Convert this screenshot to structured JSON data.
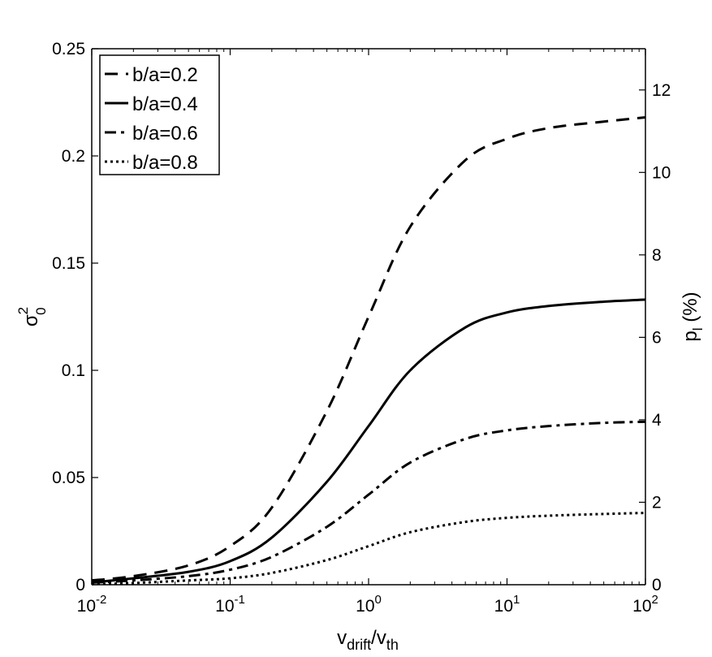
{
  "chart_data": {
    "type": "line",
    "xlabel": {
      "main": "v",
      "sub1": "drift",
      "mid": "/v",
      "sub2": "th"
    },
    "ylabel": {
      "main": "σ",
      "sup": "2",
      "sub": "0"
    },
    "y2label": {
      "main": "p",
      "sub": "l",
      "rest": " (%)"
    },
    "xscale": "log",
    "xlim": [
      0.01,
      100
    ],
    "ylim": [
      0,
      0.25
    ],
    "y2lim": [
      0,
      13
    ],
    "grid": false,
    "legend_position": "top-left",
    "xticks": [
      {
        "value": 0.01,
        "base": "10",
        "exp": "-2"
      },
      {
        "value": 0.1,
        "base": "10",
        "exp": "-1"
      },
      {
        "value": 1,
        "base": "10",
        "exp": "0"
      },
      {
        "value": 10,
        "base": "10",
        "exp": "1"
      },
      {
        "value": 100,
        "base": "10",
        "exp": "2"
      }
    ],
    "yticks": [
      {
        "value": 0,
        "label": "0"
      },
      {
        "value": 0.05,
        "label": "0.05"
      },
      {
        "value": 0.1,
        "label": "0.1"
      },
      {
        "value": 0.15,
        "label": "0.15"
      },
      {
        "value": 0.2,
        "label": "0.2"
      },
      {
        "value": 0.25,
        "label": "0.25"
      }
    ],
    "y2ticks": [
      {
        "value": 0,
        "label": "0"
      },
      {
        "value": 2,
        "label": "2"
      },
      {
        "value": 4,
        "label": "4"
      },
      {
        "value": 6,
        "label": "6"
      },
      {
        "value": 8,
        "label": "8"
      },
      {
        "value": 10,
        "label": "10"
      },
      {
        "value": 12,
        "label": "12"
      }
    ],
    "x": [
      0.01,
      0.02,
      0.05,
      0.1,
      0.2,
      0.5,
      1,
      2,
      5,
      10,
      20,
      50,
      100
    ],
    "series": [
      {
        "name": "b/a=0.2",
        "style": "dashed",
        "values": [
          0.002,
          0.004,
          0.009,
          0.018,
          0.036,
          0.081,
          0.125,
          0.167,
          0.198,
          0.208,
          0.213,
          0.216,
          0.218
        ]
      },
      {
        "name": "b/a=0.4",
        "style": "solid",
        "values": [
          0.001,
          0.003,
          0.006,
          0.011,
          0.022,
          0.048,
          0.074,
          0.1,
          0.12,
          0.127,
          0.13,
          0.132,
          0.133
        ]
      },
      {
        "name": "b/a=0.6",
        "style": "dashdot",
        "values": [
          0.001,
          0.002,
          0.004,
          0.007,
          0.013,
          0.027,
          0.042,
          0.057,
          0.068,
          0.072,
          0.074,
          0.0755,
          0.076
        ]
      },
      {
        "name": "b/a=0.8",
        "style": "dotted",
        "values": [
          0.0003,
          0.0008,
          0.002,
          0.003,
          0.0055,
          0.0115,
          0.018,
          0.0245,
          0.0293,
          0.0312,
          0.0322,
          0.033,
          0.0335
        ]
      }
    ]
  }
}
